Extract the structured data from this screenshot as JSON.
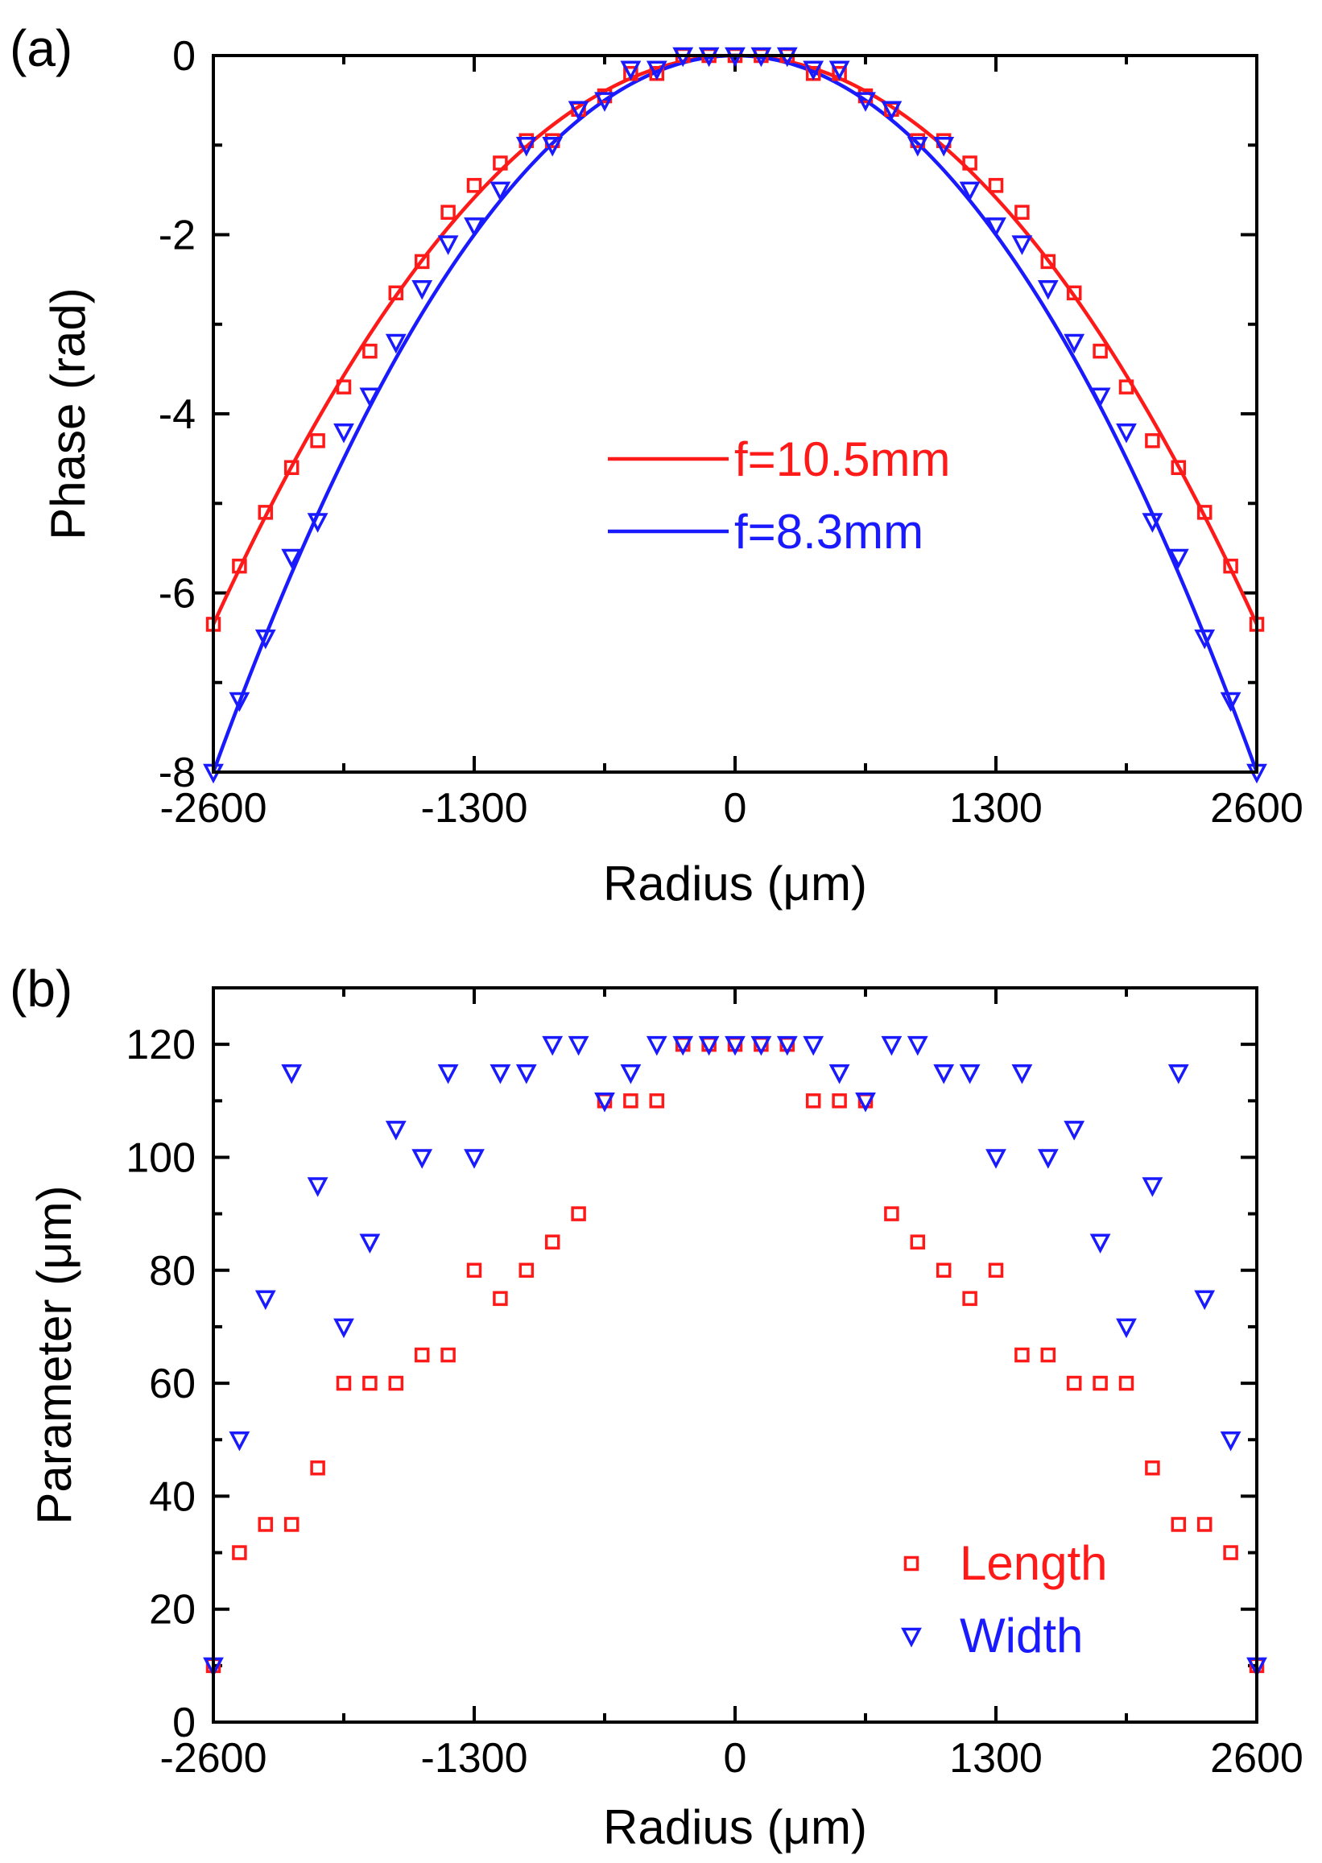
{
  "colors": {
    "red": "#ff1a1a",
    "blue": "#1a1aff"
  },
  "chart_data": [
    {
      "panel_label": "(a)",
      "type": "line",
      "xlabel": "Radius (μm)",
      "ylabel": "Phase (rad)",
      "xlim": [
        -2600,
        2600
      ],
      "ylim": [
        -8,
        0
      ],
      "xticks": [
        -2600,
        -1300,
        0,
        1300,
        2600
      ],
      "xtick_labels": [
        "-2600",
        "-1300",
        "0",
        "1300",
        "2600"
      ],
      "yticks": [
        0,
        -2,
        -4,
        -6,
        -8
      ],
      "ytick_labels": [
        "0",
        "-2",
        "-4",
        "-6",
        "-8"
      ],
      "x": [
        -2600,
        -2470,
        -2340,
        -2210,
        -2080,
        -1950,
        -1820,
        -1690,
        -1560,
        -1430,
        -1300,
        -1170,
        -1040,
        -910,
        -780,
        -650,
        -520,
        -390,
        -260,
        -130,
        0,
        130,
        260,
        390,
        520,
        650,
        780,
        910,
        1040,
        1170,
        1300,
        1430,
        1560,
        1690,
        1820,
        1950,
        2080,
        2210,
        2340,
        2470,
        2600
      ],
      "series": [
        {
          "name": "f=10.5mm",
          "color": "#ff1a1a",
          "marker": "square",
          "values": [
            -6.35,
            -5.7,
            -5.1,
            -4.6,
            -4.3,
            -3.7,
            -3.3,
            -2.65,
            -2.3,
            -1.75,
            -1.45,
            -1.2,
            -0.95,
            -0.95,
            -0.6,
            -0.45,
            -0.2,
            -0.2,
            0,
            0,
            0,
            0,
            0,
            -0.2,
            -0.2,
            -0.45,
            -0.6,
            -0.95,
            -0.95,
            -1.2,
            -1.45,
            -1.75,
            -2.3,
            -2.65,
            -3.3,
            -3.7,
            -4.3,
            -4.6,
            -5.1,
            -5.7,
            -6.35
          ],
          "curve_peak": -6.35
        },
        {
          "name": "f=8.3mm",
          "color": "#1a1aff",
          "marker": "triangle-down",
          "values": [
            -8.0,
            -7.2,
            -6.5,
            -5.6,
            -5.2,
            -4.2,
            -3.8,
            -3.2,
            -2.6,
            -2.1,
            -1.9,
            -1.5,
            -1.0,
            -1.0,
            -0.6,
            -0.5,
            -0.15,
            -0.15,
            0,
            0,
            0,
            0,
            0,
            -0.15,
            -0.15,
            -0.5,
            -0.6,
            -1.0,
            -1.0,
            -1.5,
            -1.9,
            -2.1,
            -2.6,
            -3.2,
            -3.8,
            -4.2,
            -5.2,
            -5.6,
            -6.5,
            -7.2,
            -8.0
          ],
          "curve_peak": -8.0
        }
      ],
      "legend": {
        "position": "center-right",
        "entries": [
          "f=10.5mm",
          "f=8.3mm"
        ]
      }
    },
    {
      "panel_label": "(b)",
      "type": "scatter",
      "xlabel": "Radius (μm)",
      "ylabel": "Parameter (μm)",
      "xlim": [
        -2600,
        2600
      ],
      "ylim": [
        0,
        130
      ],
      "xticks": [
        -2600,
        -1300,
        0,
        1300,
        2600
      ],
      "xtick_labels": [
        "-2600",
        "-1300",
        "0",
        "1300",
        "2600"
      ],
      "yticks": [
        0,
        20,
        40,
        60,
        80,
        100,
        120
      ],
      "ytick_labels": [
        "0",
        "20",
        "40",
        "60",
        "80",
        "100",
        "120"
      ],
      "x": [
        -2600,
        -2470,
        -2340,
        -2210,
        -2080,
        -1950,
        -1820,
        -1690,
        -1560,
        -1430,
        -1300,
        -1170,
        -1040,
        -910,
        -780,
        -650,
        -520,
        -390,
        -260,
        -130,
        0,
        130,
        260,
        390,
        520,
        650,
        780,
        910,
        1040,
        1170,
        1300,
        1430,
        1560,
        1690,
        1820,
        1950,
        2080,
        2210,
        2340,
        2470,
        2600
      ],
      "series": [
        {
          "name": "Length",
          "color": "#ff1a1a",
          "marker": "square",
          "values": [
            10,
            30,
            35,
            35,
            45,
            60,
            60,
            60,
            65,
            65,
            80,
            75,
            80,
            85,
            90,
            110,
            110,
            110,
            120,
            120,
            120,
            120,
            120,
            110,
            110,
            110,
            90,
            85,
            80,
            75,
            80,
            65,
            65,
            60,
            60,
            60,
            45,
            35,
            35,
            30,
            10
          ]
        },
        {
          "name": "Width",
          "color": "#1a1aff",
          "marker": "triangle-down",
          "values": [
            10,
            50,
            75,
            115,
            95,
            70,
            85,
            105,
            100,
            115,
            100,
            115,
            115,
            120,
            120,
            110,
            115,
            120,
            120,
            120,
            120,
            120,
            120,
            120,
            115,
            110,
            120,
            120,
            115,
            115,
            100,
            115,
            100,
            105,
            85,
            70,
            95,
            115,
            75,
            50,
            10
          ]
        }
      ],
      "legend": {
        "position": "bottom-right",
        "entries": [
          "Length",
          "Width"
        ]
      }
    }
  ]
}
